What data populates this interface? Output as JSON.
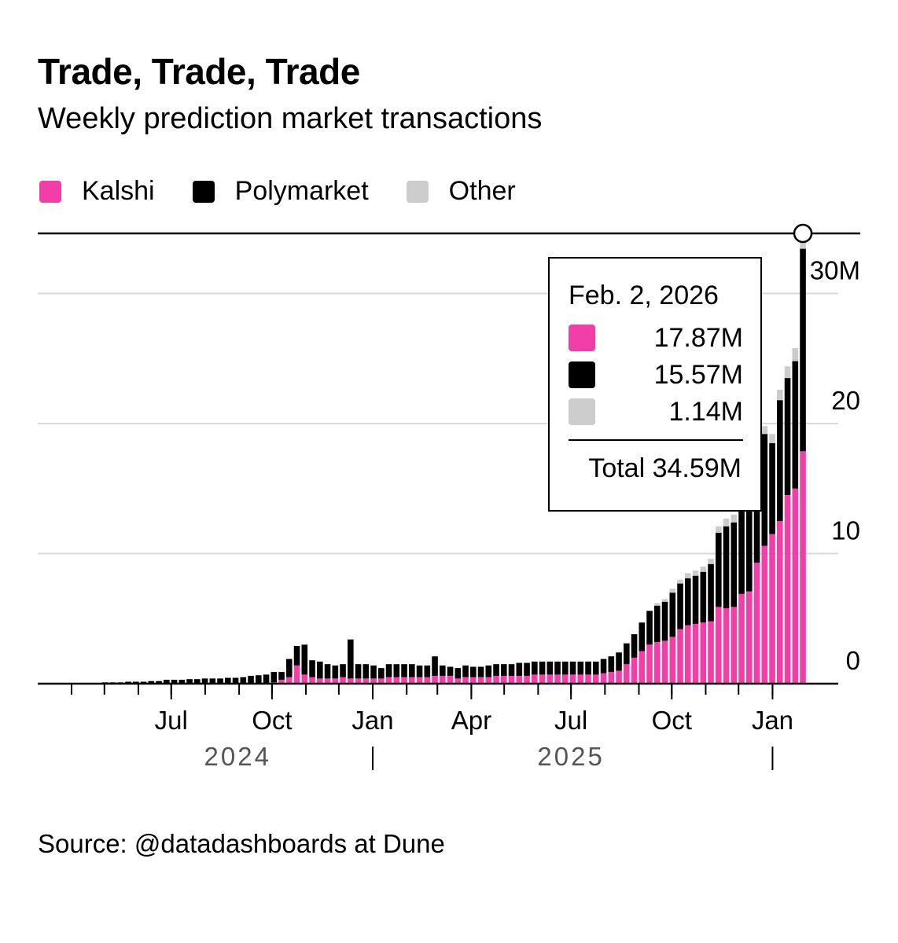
{
  "title": "Trade, Trade, Trade",
  "subtitle": "Weekly prediction market transactions",
  "source": "Source: @datadashboards at Dune",
  "colors": {
    "kalshi": "#f23fa8",
    "polymarket": "#000000",
    "other": "#cccccc",
    "grid": "#d9d9d9"
  },
  "tooltip": {
    "date": "Feb. 2, 2026",
    "kalshi": "17.87M",
    "polymarket": "15.57M",
    "other": "1.14M",
    "total": "Total 34.59M"
  },
  "chart_data": {
    "type": "bar",
    "stacked": true,
    "title": "Trade, Trade, Trade",
    "subtitle": "Weekly prediction market transactions",
    "ylabel": "",
    "ylim": [
      0,
      32.5
    ],
    "yticks": [
      0,
      10,
      20,
      30
    ],
    "ytick_labels": [
      "0",
      "10",
      "20",
      "30M"
    ],
    "grid": true,
    "legend_position": "top-left",
    "x_start_week": "2024-03-04",
    "x_interval": "weekly",
    "xtick_labels": [
      "Jul",
      "Oct",
      "Jan",
      "Apr",
      "Jul",
      "Oct",
      "Jan"
    ],
    "xtick_dates": [
      "2024-07-01",
      "2024-10-01",
      "2025-01-01",
      "2025-04-01",
      "2025-07-01",
      "2025-10-01",
      "2026-01-01"
    ],
    "year_labels": [
      "2024",
      "2025"
    ],
    "series": [
      {
        "name": "Kalshi",
        "color": "#f23fa8",
        "values": [
          0,
          0,
          0,
          0,
          0,
          0,
          0,
          0,
          0,
          0,
          0,
          0,
          0,
          0,
          0,
          0,
          0,
          0,
          0,
          0,
          0,
          0,
          0,
          0,
          0,
          0,
          0,
          0,
          0,
          0,
          0.1,
          0.3,
          0.5,
          1.4,
          0.7,
          0.5,
          0.4,
          0.4,
          0.4,
          0.5,
          0.4,
          0.4,
          0.4,
          0.4,
          0.4,
          0.5,
          0.5,
          0.5,
          0.5,
          0.5,
          0.5,
          0.6,
          0.6,
          0.6,
          0.4,
          0.5,
          0.5,
          0.5,
          0.5,
          0.6,
          0.6,
          0.6,
          0.6,
          0.6,
          0.7,
          0.7,
          0.7,
          0.7,
          0.7,
          0.7,
          0.7,
          0.7,
          0.7,
          0.8,
          0.9,
          1.0,
          1.5,
          2.0,
          2.5,
          3.0,
          3.2,
          3.3,
          3.6,
          4.2,
          4.5,
          4.6,
          4.7,
          4.8,
          5.9,
          5.8,
          5.9,
          6.9,
          7.1,
          9.3,
          10.6,
          11.5,
          12.5,
          14.5,
          15.0,
          17.87
        ]
      },
      {
        "name": "Polymarket",
        "color": "#000000",
        "values": [
          0.05,
          0.05,
          0.05,
          0.05,
          0.05,
          0.05,
          0.05,
          0.05,
          0.1,
          0.1,
          0.1,
          0.15,
          0.15,
          0.15,
          0.2,
          0.2,
          0.3,
          0.3,
          0.3,
          0.35,
          0.35,
          0.4,
          0.4,
          0.4,
          0.45,
          0.45,
          0.5,
          0.6,
          0.65,
          0.7,
          0.8,
          0.6,
          1.4,
          1.5,
          2.3,
          1.3,
          1.3,
          1.1,
          1.0,
          1.0,
          3.0,
          1.1,
          1.1,
          1.0,
          0.8,
          1.0,
          1.0,
          1.0,
          1.0,
          0.9,
          0.9,
          1.5,
          0.8,
          0.7,
          0.8,
          0.9,
          0.8,
          0.8,
          0.9,
          0.9,
          0.9,
          0.9,
          1.0,
          1.0,
          1.0,
          1.0,
          1.0,
          1.0,
          1.0,
          1.0,
          1.0,
          1.0,
          1.0,
          1.1,
          1.2,
          1.4,
          1.6,
          1.8,
          2.2,
          2.6,
          2.8,
          3.0,
          3.4,
          3.5,
          3.6,
          3.7,
          3.9,
          4.4,
          5.7,
          6.3,
          6.5,
          6.6,
          7.4,
          7.9,
          8.6,
          7.0,
          9.3,
          9.0,
          9.8,
          15.57
        ]
      },
      {
        "name": "Other",
        "color": "#cccccc",
        "values": [
          0,
          0,
          0,
          0,
          0,
          0,
          0,
          0,
          0,
          0,
          0,
          0,
          0,
          0,
          0,
          0,
          0,
          0,
          0,
          0,
          0,
          0,
          0,
          0,
          0,
          0,
          0,
          0,
          0,
          0,
          0,
          0,
          0,
          0,
          0,
          0,
          0,
          0,
          0,
          0,
          0,
          0,
          0,
          0,
          0,
          0,
          0,
          0,
          0,
          0,
          0,
          0,
          0,
          0,
          0,
          0,
          0,
          0,
          0,
          0,
          0,
          0,
          0,
          0,
          0,
          0,
          0,
          0,
          0,
          0,
          0,
          0,
          0,
          0,
          0,
          0,
          0,
          0,
          0,
          0,
          0.2,
          0.2,
          0.3,
          0.3,
          0.4,
          0.4,
          0.4,
          0.4,
          0.5,
          0.6,
          0.6,
          0.6,
          0.6,
          0.6,
          0.6,
          0.7,
          0.8,
          0.9,
          1.0,
          1.14
        ]
      }
    ]
  }
}
